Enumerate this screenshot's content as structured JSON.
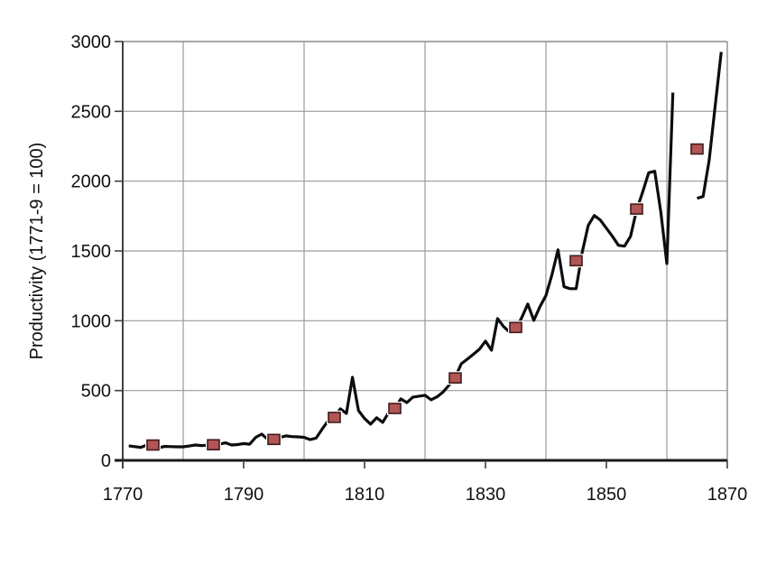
{
  "figure": {
    "background": "#ffffff"
  },
  "chart_data": {
    "type": "line",
    "title": "",
    "xlabel": "",
    "ylabel": "Productivity (1771-9 = 100)",
    "xlim": [
      1770,
      1870
    ],
    "ylim": [
      0,
      3000
    ],
    "grid": true,
    "legend": "none",
    "frame": true,
    "x_tick_labels": [
      "1770",
      "1790",
      "1810",
      "1830",
      "1850",
      "1870"
    ],
    "x_tick_years": [
      1770,
      1790,
      1810,
      1830,
      1850,
      1870
    ],
    "x_gridline_years": [
      1780,
      1800,
      1820,
      1840,
      1860
    ],
    "y_tick_labels": [
      "0",
      "500",
      "1000",
      "1500",
      "2000",
      "2500",
      "3000"
    ],
    "y_tick_values": [
      0,
      500,
      1000,
      1500,
      2000,
      2500,
      3000
    ],
    "y_gridline_values": [
      500,
      1000,
      1500,
      2000,
      2500
    ],
    "colors": {
      "gridline": "#9a9a9a",
      "frame_light": "#8c8c8c",
      "axis_left": "#404040",
      "axis_bottom": "#1a1a1a",
      "tick": "#404040",
      "text": "#111111",
      "line": "#0d0d0d",
      "marker_fill": "#b25555",
      "marker_edge": "#401c1c",
      "marker_halo": "#ffffff"
    },
    "series": [
      {
        "name": "annual-productivity-line",
        "type": "line",
        "color": "#0d0d0d",
        "points": [
          [
            1771,
            104
          ],
          [
            1772,
            98
          ],
          [
            1773,
            93
          ],
          [
            1774,
            110
          ],
          [
            1775,
            106
          ],
          [
            1776,
            91
          ],
          [
            1777,
            100
          ],
          [
            1778,
            98
          ],
          [
            1779,
            97
          ],
          [
            1780,
            97
          ],
          [
            1781,
            103
          ],
          [
            1782,
            110
          ],
          [
            1783,
            106
          ],
          [
            1784,
            108
          ],
          [
            1785,
            110
          ],
          [
            1786,
            116
          ],
          [
            1787,
            126
          ],
          [
            1788,
            110
          ],
          [
            1789,
            113
          ],
          [
            1790,
            120
          ],
          [
            1791,
            116
          ],
          [
            1792,
            165
          ],
          [
            1793,
            188
          ],
          [
            1794,
            150
          ],
          [
            1795,
            149
          ],
          [
            1796,
            165
          ],
          [
            1797,
            175
          ],
          [
            1798,
            170
          ],
          [
            1799,
            168
          ],
          [
            1800,
            165
          ],
          [
            1801,
            149
          ],
          [
            1802,
            160
          ],
          [
            1803,
            225
          ],
          [
            1804,
            285
          ],
          [
            1805,
            311
          ],
          [
            1806,
            369
          ],
          [
            1807,
            336
          ],
          [
            1808,
            595
          ],
          [
            1809,
            356
          ],
          [
            1810,
            300
          ],
          [
            1811,
            259
          ],
          [
            1812,
            305
          ],
          [
            1813,
            272
          ],
          [
            1814,
            343
          ],
          [
            1815,
            369
          ],
          [
            1816,
            440
          ],
          [
            1817,
            414
          ],
          [
            1818,
            453
          ],
          [
            1819,
            460
          ],
          [
            1820,
            466
          ],
          [
            1821,
            434
          ],
          [
            1822,
            455
          ],
          [
            1823,
            490
          ],
          [
            1824,
            540
          ],
          [
            1825,
            595
          ],
          [
            1826,
            692
          ],
          [
            1827,
            725
          ],
          [
            1828,
            760
          ],
          [
            1829,
            796
          ],
          [
            1830,
            854
          ],
          [
            1831,
            789
          ],
          [
            1832,
            1016
          ],
          [
            1833,
            958
          ],
          [
            1834,
            919
          ],
          [
            1835,
            938
          ],
          [
            1836,
            1022
          ],
          [
            1837,
            1120
          ],
          [
            1838,
            1003
          ],
          [
            1839,
            1100
          ],
          [
            1840,
            1180
          ],
          [
            1841,
            1330
          ],
          [
            1842,
            1508
          ],
          [
            1843,
            1243
          ],
          [
            1844,
            1230
          ],
          [
            1845,
            1230
          ],
          [
            1846,
            1490
          ],
          [
            1847,
            1683
          ],
          [
            1848,
            1754
          ],
          [
            1849,
            1721
          ],
          [
            1850,
            1663
          ],
          [
            1851,
            1605
          ],
          [
            1852,
            1540
          ],
          [
            1853,
            1534
          ],
          [
            1854,
            1605
          ],
          [
            1855,
            1793
          ],
          [
            1856,
            1922
          ],
          [
            1857,
            2060
          ],
          [
            1858,
            2071
          ],
          [
            1859,
            1780
          ],
          [
            1860,
            1410
          ],
          [
            1861,
            2634
          ],
          [
            1862,
            null
          ],
          [
            1863,
            null
          ],
          [
            1864,
            null
          ],
          [
            1865,
            1877
          ],
          [
            1866,
            1890
          ],
          [
            1867,
            2150
          ],
          [
            1868,
            2540
          ],
          [
            1869,
            2925
          ]
        ]
      },
      {
        "name": "decade-average-markers",
        "type": "scatter",
        "marker": "square",
        "fill": "#b25555",
        "edge": "#401c1c",
        "halo": "#ffffff",
        "x": [
          1775,
          1785,
          1795,
          1805,
          1815,
          1825,
          1835,
          1845,
          1855,
          1865
        ],
        "y": [
          110,
          112,
          150,
          308,
          372,
          590,
          952,
          1430,
          1800,
          2230
        ]
      }
    ]
  }
}
